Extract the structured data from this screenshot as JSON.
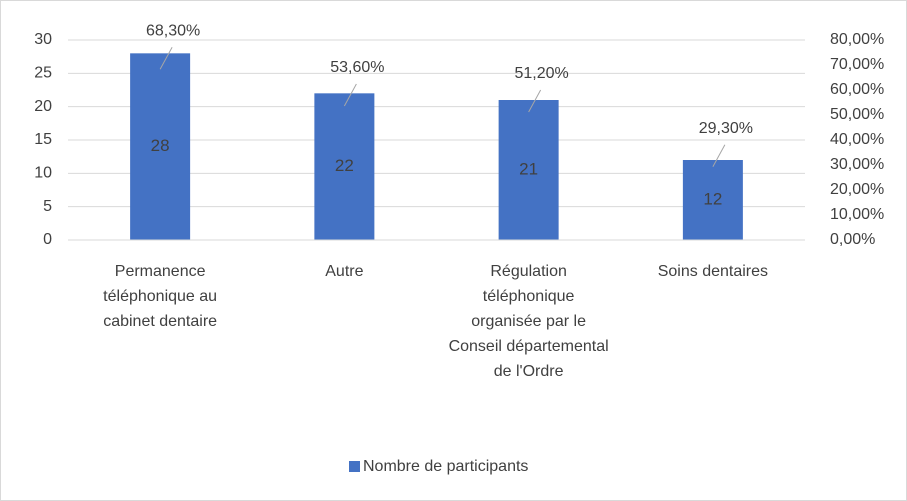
{
  "chart_data": {
    "type": "bar",
    "categories": [
      "Permanence téléphonique au cabinet dentaire",
      "Autre",
      "Régulation téléphonique organisée par le Conseil départemental de l'Ordre",
      "Soins dentaires"
    ],
    "series": [
      {
        "name": "Nombre de participants",
        "color": "#4472c4",
        "values": [
          28,
          22,
          21,
          12
        ]
      },
      {
        "axis": "y2",
        "values": [
          68.3,
          53.6,
          51.2,
          29.3
        ],
        "value_labels": [
          "68,30%",
          "53,60%",
          "51,20%",
          "29,30%"
        ]
      }
    ],
    "ylim": [
      0,
      30
    ],
    "yticks": [
      0,
      5,
      10,
      15,
      20,
      25,
      30
    ],
    "y2lim": [
      0,
      80
    ],
    "y2ticks": [
      {
        "value": 0,
        "label": "0,00%"
      },
      {
        "value": 10,
        "label": "10,00%"
      },
      {
        "value": 20,
        "label": "20,00%"
      },
      {
        "value": 30,
        "label": "30,00%"
      },
      {
        "value": 40,
        "label": "40,00%"
      },
      {
        "value": 50,
        "label": "50,00%"
      },
      {
        "value": 60,
        "label": "60,00%"
      },
      {
        "value": 70,
        "label": "70,00%"
      },
      {
        "value": 80,
        "label": "80,00%"
      }
    ],
    "grid": true,
    "legend": "bottom"
  }
}
